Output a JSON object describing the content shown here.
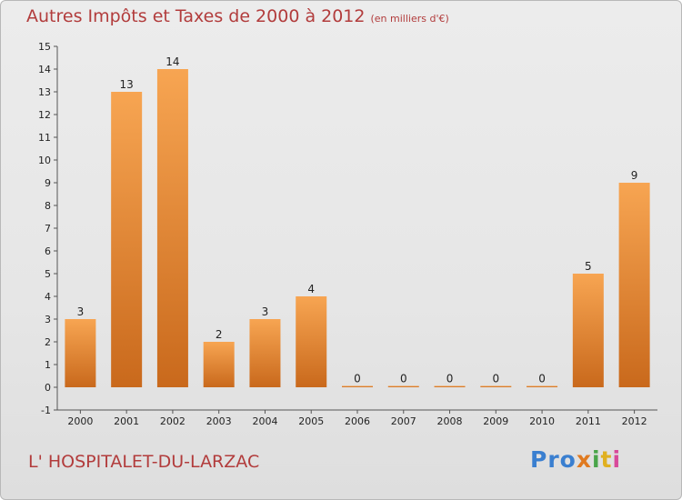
{
  "title": "Autres Impôts et Taxes de 2000 à 2012",
  "subtitle": "(en milliers d'€)",
  "commune": "L' HOSPITALET-DU-LARZAC",
  "logo": {
    "p1": "Pro",
    "p2": "x",
    "p3": "i",
    "p4": "t",
    "p5": "i"
  },
  "colors": {
    "bar": "#f0923c",
    "bar_dark": "#c9691c",
    "title": "#b23c3c"
  },
  "chart_data": {
    "type": "bar",
    "categories": [
      "2000",
      "2001",
      "2002",
      "2003",
      "2004",
      "2005",
      "2006",
      "2007",
      "2008",
      "2009",
      "2010",
      "2011",
      "2012"
    ],
    "values": [
      3,
      13,
      14,
      2,
      3,
      4,
      0,
      0,
      0,
      0,
      0,
      5,
      9
    ],
    "ylim": [
      -1,
      15
    ],
    "yticks": [
      "-1",
      "0",
      "1",
      "2",
      "3",
      "4",
      "5",
      "6",
      "7",
      "8",
      "9",
      "10",
      "11",
      "12",
      "13",
      "14",
      "15"
    ],
    "grid": false
  }
}
